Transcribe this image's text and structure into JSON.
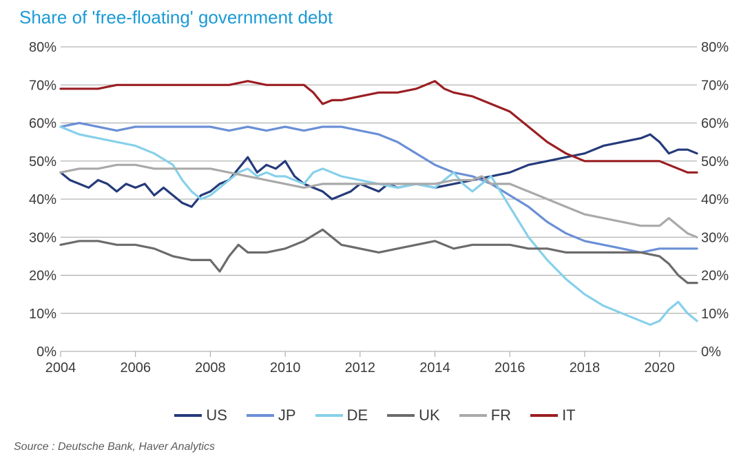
{
  "title": "Share of 'free-floating' government debt",
  "source": "Source : Deutsche Bank, Haver Analytics",
  "chart": {
    "type": "line",
    "background_color": "#ffffff",
    "grid_color": "#9fa0a0",
    "axis_font_size": 20,
    "title_color": "#1b9ad6",
    "title_font_size": 26,
    "line_width": 3.2,
    "x": {
      "min": 2004,
      "max": 2021,
      "tick_step": 2,
      "ticks": [
        2004,
        2006,
        2008,
        2010,
        2012,
        2014,
        2016,
        2018,
        2020
      ],
      "tick_labels": [
        "2004",
        "2006",
        "2008",
        "2010",
        "2012",
        "2014",
        "2016",
        "2018",
        "2020"
      ]
    },
    "y": {
      "min": 0,
      "max": 80,
      "tick_step": 10,
      "ticks": [
        0,
        10,
        20,
        30,
        40,
        50,
        60,
        70,
        80
      ],
      "tick_labels": [
        "0%",
        "10%",
        "20%",
        "30%",
        "40%",
        "50%",
        "60%",
        "70%",
        "80%"
      ],
      "right_axis": true
    },
    "legend": {
      "position": "bottom",
      "items": [
        {
          "key": "US",
          "label": "US",
          "color": "#243a7a"
        },
        {
          "key": "JP",
          "label": "JP",
          "color": "#6a8fd6"
        },
        {
          "key": "DE",
          "label": "DE",
          "color": "#86d0ea"
        },
        {
          "key": "UK",
          "label": "UK",
          "color": "#6b6b6b"
        },
        {
          "key": "FR",
          "label": "FR",
          "color": "#a9a9a9"
        },
        {
          "key": "IT",
          "label": "IT",
          "color": "#9a1e22"
        }
      ]
    },
    "series": {
      "US": {
        "color": "#243a7a",
        "data": [
          [
            2004.0,
            47
          ],
          [
            2004.25,
            45
          ],
          [
            2004.5,
            44
          ],
          [
            2004.75,
            43
          ],
          [
            2005.0,
            45
          ],
          [
            2005.25,
            44
          ],
          [
            2005.5,
            42
          ],
          [
            2005.75,
            44
          ],
          [
            2006.0,
            43
          ],
          [
            2006.25,
            44
          ],
          [
            2006.5,
            41
          ],
          [
            2006.75,
            43
          ],
          [
            2007.0,
            41
          ],
          [
            2007.25,
            39
          ],
          [
            2007.5,
            38
          ],
          [
            2007.75,
            41
          ],
          [
            2008.0,
            42
          ],
          [
            2008.25,
            44
          ],
          [
            2008.5,
            45
          ],
          [
            2008.75,
            48
          ],
          [
            2009.0,
            51
          ],
          [
            2009.25,
            47
          ],
          [
            2009.5,
            49
          ],
          [
            2009.75,
            48
          ],
          [
            2010.0,
            50
          ],
          [
            2010.25,
            46
          ],
          [
            2010.5,
            44
          ],
          [
            2010.75,
            43
          ],
          [
            2011.0,
            42
          ],
          [
            2011.25,
            40
          ],
          [
            2011.5,
            41
          ],
          [
            2011.75,
            42
          ],
          [
            2012.0,
            44
          ],
          [
            2012.25,
            43
          ],
          [
            2012.5,
            42
          ],
          [
            2012.75,
            44
          ],
          [
            2013.0,
            43
          ],
          [
            2013.5,
            44
          ],
          [
            2014.0,
            43
          ],
          [
            2014.5,
            44
          ],
          [
            2015.0,
            45
          ],
          [
            2015.5,
            46
          ],
          [
            2016.0,
            47
          ],
          [
            2016.5,
            49
          ],
          [
            2017.0,
            50
          ],
          [
            2017.5,
            51
          ],
          [
            2018.0,
            52
          ],
          [
            2018.5,
            54
          ],
          [
            2019.0,
            55
          ],
          [
            2019.5,
            56
          ],
          [
            2019.75,
            57
          ],
          [
            2020.0,
            55
          ],
          [
            2020.25,
            52
          ],
          [
            2020.5,
            53
          ],
          [
            2020.75,
            53
          ],
          [
            2021.0,
            52
          ]
        ]
      },
      "JP": {
        "color": "#6a8fd6",
        "data": [
          [
            2004.0,
            59
          ],
          [
            2004.5,
            60
          ],
          [
            2005.0,
            59
          ],
          [
            2005.5,
            58
          ],
          [
            2006.0,
            59
          ],
          [
            2006.5,
            59
          ],
          [
            2007.0,
            59
          ],
          [
            2007.5,
            59
          ],
          [
            2008.0,
            59
          ],
          [
            2008.5,
            58
          ],
          [
            2009.0,
            59
          ],
          [
            2009.5,
            58
          ],
          [
            2010.0,
            59
          ],
          [
            2010.5,
            58
          ],
          [
            2011.0,
            59
          ],
          [
            2011.5,
            59
          ],
          [
            2012.0,
            58
          ],
          [
            2012.5,
            57
          ],
          [
            2013.0,
            55
          ],
          [
            2013.5,
            52
          ],
          [
            2014.0,
            49
          ],
          [
            2014.5,
            47
          ],
          [
            2015.0,
            46
          ],
          [
            2015.5,
            44
          ],
          [
            2016.0,
            41
          ],
          [
            2016.5,
            38
          ],
          [
            2017.0,
            34
          ],
          [
            2017.5,
            31
          ],
          [
            2018.0,
            29
          ],
          [
            2018.5,
            28
          ],
          [
            2019.0,
            27
          ],
          [
            2019.5,
            26
          ],
          [
            2020.0,
            27
          ],
          [
            2020.5,
            27
          ],
          [
            2021.0,
            27
          ]
        ]
      },
      "DE": {
        "color": "#86d0ea",
        "data": [
          [
            2004.0,
            59
          ],
          [
            2004.25,
            58
          ],
          [
            2004.5,
            57
          ],
          [
            2005.0,
            56
          ],
          [
            2005.5,
            55
          ],
          [
            2006.0,
            54
          ],
          [
            2006.5,
            52
          ],
          [
            2007.0,
            49
          ],
          [
            2007.25,
            45
          ],
          [
            2007.5,
            42
          ],
          [
            2007.75,
            40
          ],
          [
            2008.0,
            41
          ],
          [
            2008.25,
            43
          ],
          [
            2008.5,
            45
          ],
          [
            2008.75,
            47
          ],
          [
            2009.0,
            48
          ],
          [
            2009.25,
            46
          ],
          [
            2009.5,
            47
          ],
          [
            2009.75,
            46
          ],
          [
            2010.0,
            46
          ],
          [
            2010.25,
            45
          ],
          [
            2010.5,
            44
          ],
          [
            2010.75,
            47
          ],
          [
            2011.0,
            48
          ],
          [
            2011.25,
            47
          ],
          [
            2011.5,
            46
          ],
          [
            2012.0,
            45
          ],
          [
            2012.5,
            44
          ],
          [
            2013.0,
            43
          ],
          [
            2013.5,
            44
          ],
          [
            2014.0,
            43
          ],
          [
            2014.25,
            45
          ],
          [
            2014.5,
            47
          ],
          [
            2014.75,
            44
          ],
          [
            2015.0,
            42
          ],
          [
            2015.25,
            44
          ],
          [
            2015.5,
            46
          ],
          [
            2015.75,
            42
          ],
          [
            2016.0,
            38
          ],
          [
            2016.25,
            34
          ],
          [
            2016.5,
            30
          ],
          [
            2017.0,
            24
          ],
          [
            2017.5,
            19
          ],
          [
            2018.0,
            15
          ],
          [
            2018.5,
            12
          ],
          [
            2019.0,
            10
          ],
          [
            2019.5,
            8
          ],
          [
            2019.75,
            7
          ],
          [
            2020.0,
            8
          ],
          [
            2020.25,
            11
          ],
          [
            2020.5,
            13
          ],
          [
            2020.75,
            10
          ],
          [
            2021.0,
            8
          ]
        ]
      },
      "UK": {
        "color": "#6b6b6b",
        "data": [
          [
            2004.0,
            28
          ],
          [
            2004.5,
            29
          ],
          [
            2005.0,
            29
          ],
          [
            2005.5,
            28
          ],
          [
            2006.0,
            28
          ],
          [
            2006.5,
            27
          ],
          [
            2007.0,
            25
          ],
          [
            2007.5,
            24
          ],
          [
            2008.0,
            24
          ],
          [
            2008.25,
            21
          ],
          [
            2008.5,
            25
          ],
          [
            2008.75,
            28
          ],
          [
            2009.0,
            26
          ],
          [
            2009.5,
            26
          ],
          [
            2010.0,
            27
          ],
          [
            2010.5,
            29
          ],
          [
            2011.0,
            32
          ],
          [
            2011.25,
            30
          ],
          [
            2011.5,
            28
          ],
          [
            2012.0,
            27
          ],
          [
            2012.5,
            26
          ],
          [
            2013.0,
            27
          ],
          [
            2013.5,
            28
          ],
          [
            2014.0,
            29
          ],
          [
            2014.5,
            27
          ],
          [
            2015.0,
            28
          ],
          [
            2015.5,
            28
          ],
          [
            2016.0,
            28
          ],
          [
            2016.5,
            27
          ],
          [
            2017.0,
            27
          ],
          [
            2017.5,
            26
          ],
          [
            2018.0,
            26
          ],
          [
            2018.5,
            26
          ],
          [
            2019.0,
            26
          ],
          [
            2019.5,
            26
          ],
          [
            2020.0,
            25
          ],
          [
            2020.25,
            23
          ],
          [
            2020.5,
            20
          ],
          [
            2020.75,
            18
          ],
          [
            2021.0,
            18
          ]
        ]
      },
      "FR": {
        "color": "#a9a9a9",
        "data": [
          [
            2004.0,
            47
          ],
          [
            2004.5,
            48
          ],
          [
            2005.0,
            48
          ],
          [
            2005.5,
            49
          ],
          [
            2006.0,
            49
          ],
          [
            2006.5,
            48
          ],
          [
            2007.0,
            48
          ],
          [
            2007.5,
            48
          ],
          [
            2008.0,
            48
          ],
          [
            2008.5,
            47
          ],
          [
            2009.0,
            46
          ],
          [
            2009.5,
            45
          ],
          [
            2010.0,
            44
          ],
          [
            2010.5,
            43
          ],
          [
            2011.0,
            44
          ],
          [
            2011.5,
            44
          ],
          [
            2012.0,
            44
          ],
          [
            2012.5,
            44
          ],
          [
            2013.0,
            44
          ],
          [
            2013.5,
            44
          ],
          [
            2014.0,
            44
          ],
          [
            2014.5,
            45
          ],
          [
            2015.0,
            45
          ],
          [
            2015.25,
            46
          ],
          [
            2015.5,
            44
          ],
          [
            2016.0,
            44
          ],
          [
            2016.5,
            42
          ],
          [
            2017.0,
            40
          ],
          [
            2017.5,
            38
          ],
          [
            2018.0,
            36
          ],
          [
            2018.5,
            35
          ],
          [
            2019.0,
            34
          ],
          [
            2019.5,
            33
          ],
          [
            2020.0,
            33
          ],
          [
            2020.25,
            35
          ],
          [
            2020.5,
            33
          ],
          [
            2020.75,
            31
          ],
          [
            2021.0,
            30
          ]
        ]
      },
      "IT": {
        "color": "#9a1e22",
        "data": [
          [
            2004.0,
            69
          ],
          [
            2004.5,
            69
          ],
          [
            2005.0,
            69
          ],
          [
            2005.5,
            70
          ],
          [
            2006.0,
            70
          ],
          [
            2006.5,
            70
          ],
          [
            2007.0,
            70
          ],
          [
            2007.5,
            70
          ],
          [
            2008.0,
            70
          ],
          [
            2008.5,
            70
          ],
          [
            2009.0,
            71
          ],
          [
            2009.5,
            70
          ],
          [
            2010.0,
            70
          ],
          [
            2010.5,
            70
          ],
          [
            2010.75,
            68
          ],
          [
            2011.0,
            65
          ],
          [
            2011.25,
            66
          ],
          [
            2011.5,
            66
          ],
          [
            2012.0,
            67
          ],
          [
            2012.5,
            68
          ],
          [
            2013.0,
            68
          ],
          [
            2013.5,
            69
          ],
          [
            2013.75,
            70
          ],
          [
            2014.0,
            71
          ],
          [
            2014.25,
            69
          ],
          [
            2014.5,
            68
          ],
          [
            2015.0,
            67
          ],
          [
            2015.5,
            65
          ],
          [
            2016.0,
            63
          ],
          [
            2016.5,
            59
          ],
          [
            2017.0,
            55
          ],
          [
            2017.5,
            52
          ],
          [
            2018.0,
            50
          ],
          [
            2018.5,
            50
          ],
          [
            2019.0,
            50
          ],
          [
            2019.5,
            50
          ],
          [
            2020.0,
            50
          ],
          [
            2020.25,
            49
          ],
          [
            2020.5,
            48
          ],
          [
            2020.75,
            47
          ],
          [
            2021.0,
            47
          ]
        ]
      }
    }
  }
}
